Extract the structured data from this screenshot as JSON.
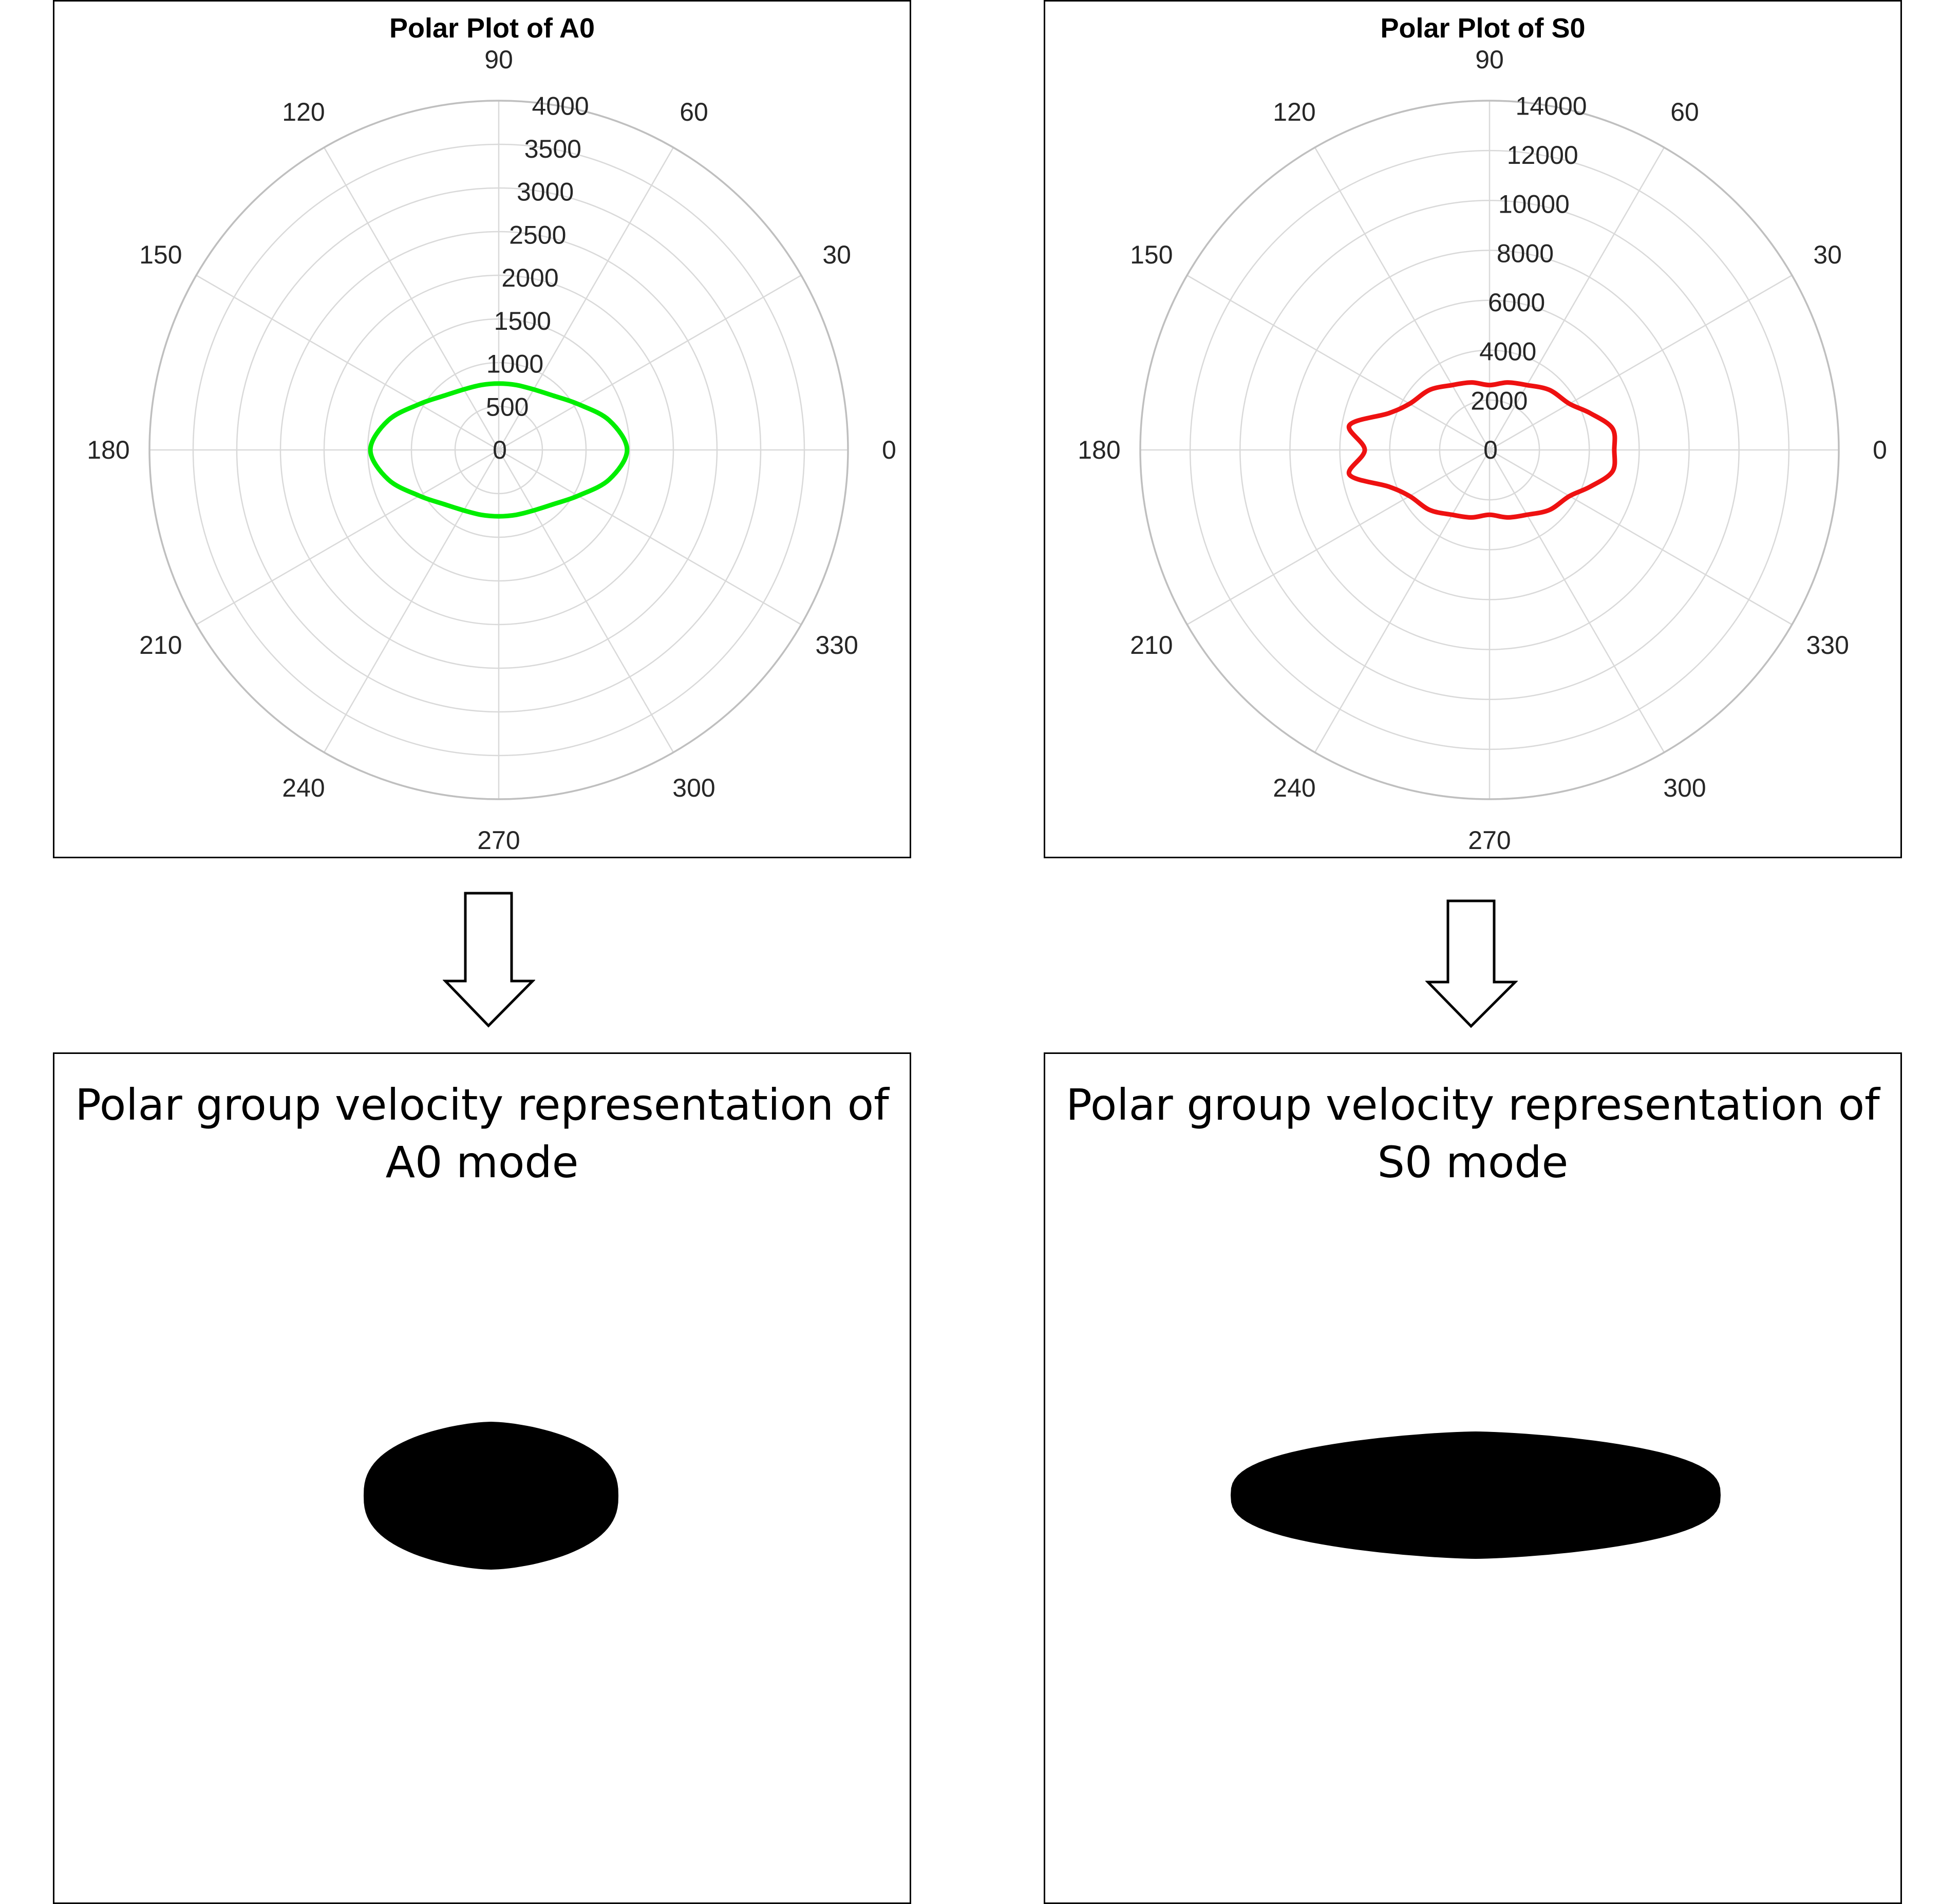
{
  "colors": {
    "grid": "#d9d9d9",
    "outer_ring": "#bfbfbf",
    "a0_curve": "#00ee00",
    "s0_curve": "#ee1111",
    "shape_fill": "#000000"
  },
  "chart_data": [
    {
      "type": "polar",
      "title": "Polar Plot of A0",
      "theta_ticks": [
        "0",
        "30",
        "60",
        "90",
        "120",
        "150",
        "180",
        "210",
        "240",
        "270",
        "300",
        "330"
      ],
      "r_ticks": [
        "0",
        "500",
        "1000",
        "1500",
        "2000",
        "2500",
        "3000",
        "3500",
        "4000"
      ],
      "rlim": [
        0,
        4000
      ],
      "grid": true,
      "series": [
        {
          "theta_deg": [
            0,
            15,
            30,
            45,
            60,
            75,
            90,
            105,
            120,
            135,
            150,
            165,
            180,
            195,
            210,
            225,
            240,
            255,
            270,
            285,
            300,
            315,
            330,
            345
          ],
          "r": [
            1470,
            1310,
            1050,
            880,
            800,
            770,
            760,
            770,
            800,
            880,
            1050,
            1310,
            1470,
            1310,
            1050,
            880,
            800,
            770,
            760,
            770,
            800,
            880,
            1050,
            1310
          ]
        }
      ]
    },
    {
      "type": "polar",
      "title": "Polar Plot of S0",
      "theta_ticks": [
        "0",
        "30",
        "60",
        "90",
        "120",
        "150",
        "180",
        "210",
        "240",
        "270",
        "300",
        "330"
      ],
      "r_ticks": [
        "0",
        "2000",
        "4000",
        "6000",
        "8000",
        "10000",
        "12000",
        "14000"
      ],
      "rlim": [
        0,
        14000
      ],
      "grid": true,
      "series": [
        {
          "theta_deg": [
            0,
            10,
            20,
            30,
            45,
            60,
            75,
            90,
            105,
            120,
            135,
            150,
            160,
            170,
            180,
            190,
            200,
            210,
            225,
            240,
            255,
            270,
            285,
            300,
            315,
            330,
            340,
            350
          ],
          "r": [
            5000,
            5000,
            4300,
            3700,
            3400,
            3000,
            2800,
            2600,
            2800,
            3000,
            3400,
            3700,
            4300,
            5700,
            5000,
            5700,
            4300,
            3700,
            3400,
            3000,
            2800,
            2600,
            2800,
            3000,
            3400,
            3700,
            4300,
            5000
          ]
        }
      ]
    }
  ],
  "captions": {
    "a0": {
      "line1": "Polar group velocity representation of",
      "line2": "A0 mode"
    },
    "s0": {
      "line1": "Polar group velocity representation of",
      "line2": "S0 mode"
    }
  },
  "shapes": {
    "a0": {
      "rx_to_ry_ratio": 1.72
    },
    "s0": {
      "rx_to_ry_ratio": 3.84
    }
  }
}
